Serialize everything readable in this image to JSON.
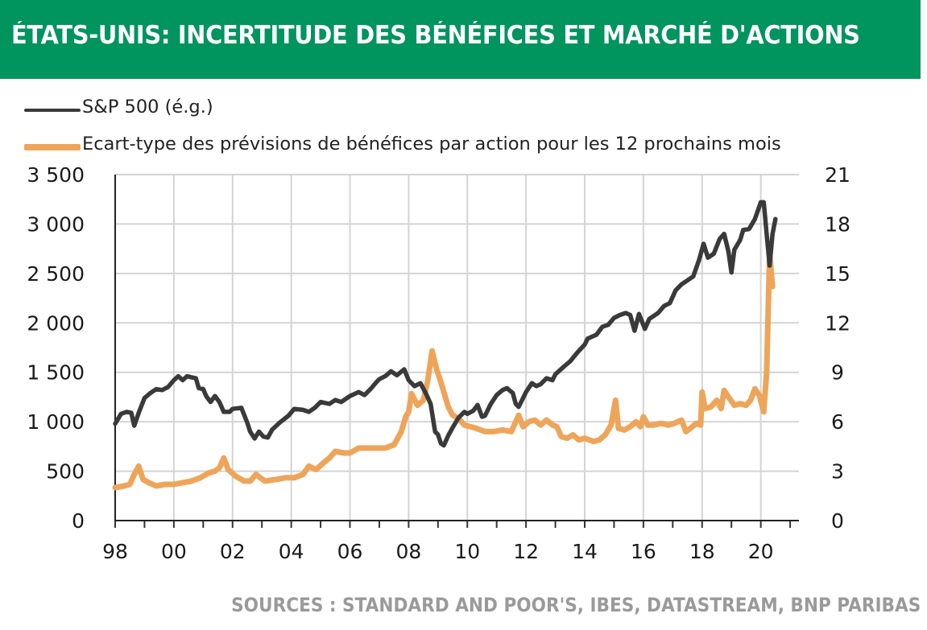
{
  "chart_data": {
    "type": "line",
    "title": "ÉTATS-UNIS: INCERTITUDE DES BÉNÉFICES ET MARCHÉ D'ACTIONS",
    "source": "SOURCES : STANDARD AND POOR'S, IBES, DATASTREAM, BNP PARIBAS",
    "header_color": "#00945f",
    "xlim": [
      1998,
      2021.3
    ],
    "x_ticks": [
      {
        "value": 1998,
        "label": "98"
      },
      {
        "value": 2000,
        "label": "00"
      },
      {
        "value": 2002,
        "label": "02"
      },
      {
        "value": 2004,
        "label": "04"
      },
      {
        "value": 2006,
        "label": "06"
      },
      {
        "value": 2008,
        "label": "08"
      },
      {
        "value": 2010,
        "label": "10"
      },
      {
        "value": 2012,
        "label": "12"
      },
      {
        "value": 2014,
        "label": "14"
      },
      {
        "value": 2016,
        "label": "16"
      },
      {
        "value": 2018,
        "label": "18"
      },
      {
        "value": 2020,
        "label": "20"
      }
    ],
    "y_left": {
      "ylim": [
        0,
        3500
      ],
      "ticks": [
        0,
        500,
        1000,
        1500,
        2000,
        2500,
        3000,
        3500
      ],
      "tick_labels": [
        "0",
        "500",
        "1 000",
        "1 500",
        "2 000",
        "2 500",
        "3 000",
        "3 500"
      ]
    },
    "y_right": {
      "ylim": [
        0,
        21
      ],
      "ticks": [
        0,
        3,
        6,
        9,
        12,
        15,
        18,
        21
      ],
      "tick_labels": [
        "0",
        "3",
        "6",
        "9",
        "12",
        "15",
        "18",
        "21"
      ]
    },
    "grid": true,
    "legend_position": "top-left",
    "series": [
      {
        "name": "S&P 500 (é.g.)",
        "axis": "left",
        "color": "#3a3a3a",
        "points": [
          [
            1998.0,
            980
          ],
          [
            1998.2,
            1080
          ],
          [
            1998.4,
            1100
          ],
          [
            1998.55,
            1090
          ],
          [
            1998.65,
            960
          ],
          [
            1998.8,
            1090
          ],
          [
            1999.0,
            1240
          ],
          [
            1999.2,
            1290
          ],
          [
            1999.4,
            1330
          ],
          [
            1999.6,
            1320
          ],
          [
            1999.8,
            1350
          ],
          [
            2000.0,
            1420
          ],
          [
            2000.15,
            1460
          ],
          [
            2000.3,
            1420
          ],
          [
            2000.45,
            1460
          ],
          [
            2000.6,
            1450
          ],
          [
            2000.75,
            1440
          ],
          [
            2000.85,
            1340
          ],
          [
            2001.0,
            1330
          ],
          [
            2001.1,
            1260
          ],
          [
            2001.25,
            1200
          ],
          [
            2001.4,
            1260
          ],
          [
            2001.55,
            1200
          ],
          [
            2001.7,
            1100
          ],
          [
            2001.9,
            1100
          ],
          [
            2002.0,
            1130
          ],
          [
            2002.3,
            1140
          ],
          [
            2002.5,
            990
          ],
          [
            2002.6,
            900
          ],
          [
            2002.75,
            830
          ],
          [
            2002.9,
            900
          ],
          [
            2003.05,
            850
          ],
          [
            2003.2,
            840
          ],
          [
            2003.35,
            920
          ],
          [
            2003.6,
            990
          ],
          [
            2003.9,
            1060
          ],
          [
            2004.1,
            1130
          ],
          [
            2004.4,
            1120
          ],
          [
            2004.6,
            1100
          ],
          [
            2004.8,
            1140
          ],
          [
            2005.0,
            1200
          ],
          [
            2005.3,
            1180
          ],
          [
            2005.5,
            1220
          ],
          [
            2005.7,
            1200
          ],
          [
            2005.9,
            1240
          ],
          [
            2006.0,
            1260
          ],
          [
            2006.3,
            1300
          ],
          [
            2006.5,
            1270
          ],
          [
            2006.7,
            1330
          ],
          [
            2006.9,
            1400
          ],
          [
            2007.0,
            1430
          ],
          [
            2007.2,
            1460
          ],
          [
            2007.4,
            1510
          ],
          [
            2007.6,
            1470
          ],
          [
            2007.85,
            1530
          ],
          [
            2008.0,
            1420
          ],
          [
            2008.2,
            1360
          ],
          [
            2008.4,
            1390
          ],
          [
            2008.6,
            1280
          ],
          [
            2008.75,
            1180
          ],
          [
            2008.9,
            900
          ],
          [
            2009.0,
            870
          ],
          [
            2009.1,
            780
          ],
          [
            2009.2,
            760
          ],
          [
            2009.35,
            860
          ],
          [
            2009.5,
            940
          ],
          [
            2009.7,
            1040
          ],
          [
            2009.9,
            1100
          ],
          [
            2010.0,
            1080
          ],
          [
            2010.2,
            1110
          ],
          [
            2010.35,
            1170
          ],
          [
            2010.5,
            1050
          ],
          [
            2010.6,
            1060
          ],
          [
            2010.8,
            1180
          ],
          [
            2011.0,
            1270
          ],
          [
            2011.2,
            1320
          ],
          [
            2011.35,
            1340
          ],
          [
            2011.55,
            1290
          ],
          [
            2011.65,
            1180
          ],
          [
            2011.75,
            1150
          ],
          [
            2011.9,
            1240
          ],
          [
            2012.0,
            1300
          ],
          [
            2012.2,
            1390
          ],
          [
            2012.35,
            1360
          ],
          [
            2012.5,
            1380
          ],
          [
            2012.7,
            1440
          ],
          [
            2012.9,
            1420
          ],
          [
            2013.0,
            1480
          ],
          [
            2013.3,
            1560
          ],
          [
            2013.5,
            1610
          ],
          [
            2013.75,
            1700
          ],
          [
            2014.0,
            1780
          ],
          [
            2014.1,
            1840
          ],
          [
            2014.4,
            1880
          ],
          [
            2014.6,
            1960
          ],
          [
            2014.8,
            1980
          ],
          [
            2015.0,
            2050
          ],
          [
            2015.2,
            2080
          ],
          [
            2015.4,
            2100
          ],
          [
            2015.55,
            2080
          ],
          [
            2015.7,
            1920
          ],
          [
            2015.85,
            2090
          ],
          [
            2016.05,
            1940
          ],
          [
            2016.2,
            2040
          ],
          [
            2016.5,
            2100
          ],
          [
            2016.7,
            2170
          ],
          [
            2016.9,
            2200
          ],
          [
            2017.1,
            2330
          ],
          [
            2017.3,
            2390
          ],
          [
            2017.5,
            2430
          ],
          [
            2017.7,
            2470
          ],
          [
            2017.9,
            2640
          ],
          [
            2018.05,
            2800
          ],
          [
            2018.2,
            2660
          ],
          [
            2018.4,
            2700
          ],
          [
            2018.6,
            2850
          ],
          [
            2018.75,
            2900
          ],
          [
            2018.9,
            2720
          ],
          [
            2019.0,
            2510
          ],
          [
            2019.1,
            2740
          ],
          [
            2019.3,
            2840
          ],
          [
            2019.4,
            2940
          ],
          [
            2019.6,
            2950
          ],
          [
            2019.8,
            3050
          ],
          [
            2020.0,
            3220
          ],
          [
            2020.1,
            3220
          ],
          [
            2020.2,
            2900
          ],
          [
            2020.3,
            2580
          ],
          [
            2020.4,
            2900
          ],
          [
            2020.5,
            3050
          ]
        ]
      },
      {
        "name": "Ecart-type des prévisions de bénéfices par action pour les 12 prochains mois",
        "axis": "right",
        "color": "#eea55a",
        "points": [
          [
            1998.0,
            2.0
          ],
          [
            1998.3,
            2.1
          ],
          [
            1998.5,
            2.2
          ],
          [
            1998.65,
            2.8
          ],
          [
            1998.8,
            3.3
          ],
          [
            1998.95,
            2.5
          ],
          [
            1999.15,
            2.3
          ],
          [
            1999.4,
            2.1
          ],
          [
            1999.7,
            2.2
          ],
          [
            2000.0,
            2.2
          ],
          [
            2000.3,
            2.3
          ],
          [
            2000.6,
            2.4
          ],
          [
            2000.9,
            2.6
          ],
          [
            2001.2,
            2.9
          ],
          [
            2001.4,
            3.0
          ],
          [
            2001.55,
            3.2
          ],
          [
            2001.7,
            3.8
          ],
          [
            2001.85,
            3.1
          ],
          [
            2002.1,
            2.7
          ],
          [
            2002.4,
            2.4
          ],
          [
            2002.6,
            2.4
          ],
          [
            2002.8,
            2.8
          ],
          [
            2003.1,
            2.4
          ],
          [
            2003.5,
            2.5
          ],
          [
            2003.8,
            2.6
          ],
          [
            2004.1,
            2.6
          ],
          [
            2004.4,
            2.8
          ],
          [
            2004.6,
            3.3
          ],
          [
            2004.85,
            3.1
          ],
          [
            2005.1,
            3.5
          ],
          [
            2005.3,
            3.8
          ],
          [
            2005.5,
            4.2
          ],
          [
            2005.8,
            4.1
          ],
          [
            2006.0,
            4.1
          ],
          [
            2006.3,
            4.4
          ],
          [
            2006.6,
            4.4
          ],
          [
            2006.9,
            4.4
          ],
          [
            2007.2,
            4.4
          ],
          [
            2007.5,
            4.6
          ],
          [
            2007.75,
            5.4
          ],
          [
            2007.9,
            6.3
          ],
          [
            2008.0,
            6.6
          ],
          [
            2008.1,
            7.7
          ],
          [
            2008.3,
            7.0
          ],
          [
            2008.5,
            7.3
          ],
          [
            2008.65,
            8.5
          ],
          [
            2008.8,
            10.3
          ],
          [
            2008.95,
            9.2
          ],
          [
            2009.1,
            8.4
          ],
          [
            2009.2,
            7.8
          ],
          [
            2009.35,
            6.9
          ],
          [
            2009.5,
            6.4
          ],
          [
            2009.7,
            6.2
          ],
          [
            2009.9,
            5.8
          ],
          [
            2010.1,
            5.7
          ],
          [
            2010.3,
            5.6
          ],
          [
            2010.6,
            5.4
          ],
          [
            2010.9,
            5.4
          ],
          [
            2011.2,
            5.5
          ],
          [
            2011.5,
            5.4
          ],
          [
            2011.75,
            6.4
          ],
          [
            2011.9,
            5.7
          ],
          [
            2012.1,
            6.0
          ],
          [
            2012.3,
            6.1
          ],
          [
            2012.5,
            5.8
          ],
          [
            2012.7,
            6.1
          ],
          [
            2012.9,
            5.8
          ],
          [
            2013.05,
            5.7
          ],
          [
            2013.2,
            5.1
          ],
          [
            2013.4,
            5.0
          ],
          [
            2013.6,
            5.2
          ],
          [
            2013.8,
            4.9
          ],
          [
            2014.0,
            5.0
          ],
          [
            2014.3,
            4.8
          ],
          [
            2014.5,
            4.9
          ],
          [
            2014.7,
            5.2
          ],
          [
            2014.9,
            5.8
          ],
          [
            2015.05,
            7.3
          ],
          [
            2015.15,
            5.6
          ],
          [
            2015.35,
            5.5
          ],
          [
            2015.55,
            5.7
          ],
          [
            2015.75,
            6.0
          ],
          [
            2015.9,
            5.7
          ],
          [
            2016.0,
            6.3
          ],
          [
            2016.15,
            5.8
          ],
          [
            2016.35,
            5.8
          ],
          [
            2016.6,
            5.9
          ],
          [
            2016.85,
            5.8
          ],
          [
            2017.05,
            5.9
          ],
          [
            2017.3,
            6.1
          ],
          [
            2017.45,
            5.4
          ],
          [
            2017.6,
            5.6
          ],
          [
            2017.8,
            5.9
          ],
          [
            2017.95,
            5.8
          ],
          [
            2018.0,
            7.8
          ],
          [
            2018.1,
            6.8
          ],
          [
            2018.3,
            6.9
          ],
          [
            2018.5,
            7.3
          ],
          [
            2018.65,
            6.8
          ],
          [
            2018.75,
            7.9
          ],
          [
            2018.9,
            7.5
          ],
          [
            2019.1,
            7.0
          ],
          [
            2019.3,
            7.1
          ],
          [
            2019.5,
            7.0
          ],
          [
            2019.65,
            7.3
          ],
          [
            2019.8,
            8.0
          ],
          [
            2019.95,
            7.6
          ],
          [
            2020.1,
            6.6
          ],
          [
            2020.2,
            9.0
          ],
          [
            2020.3,
            16.2
          ],
          [
            2020.4,
            14.2
          ]
        ]
      }
    ]
  }
}
